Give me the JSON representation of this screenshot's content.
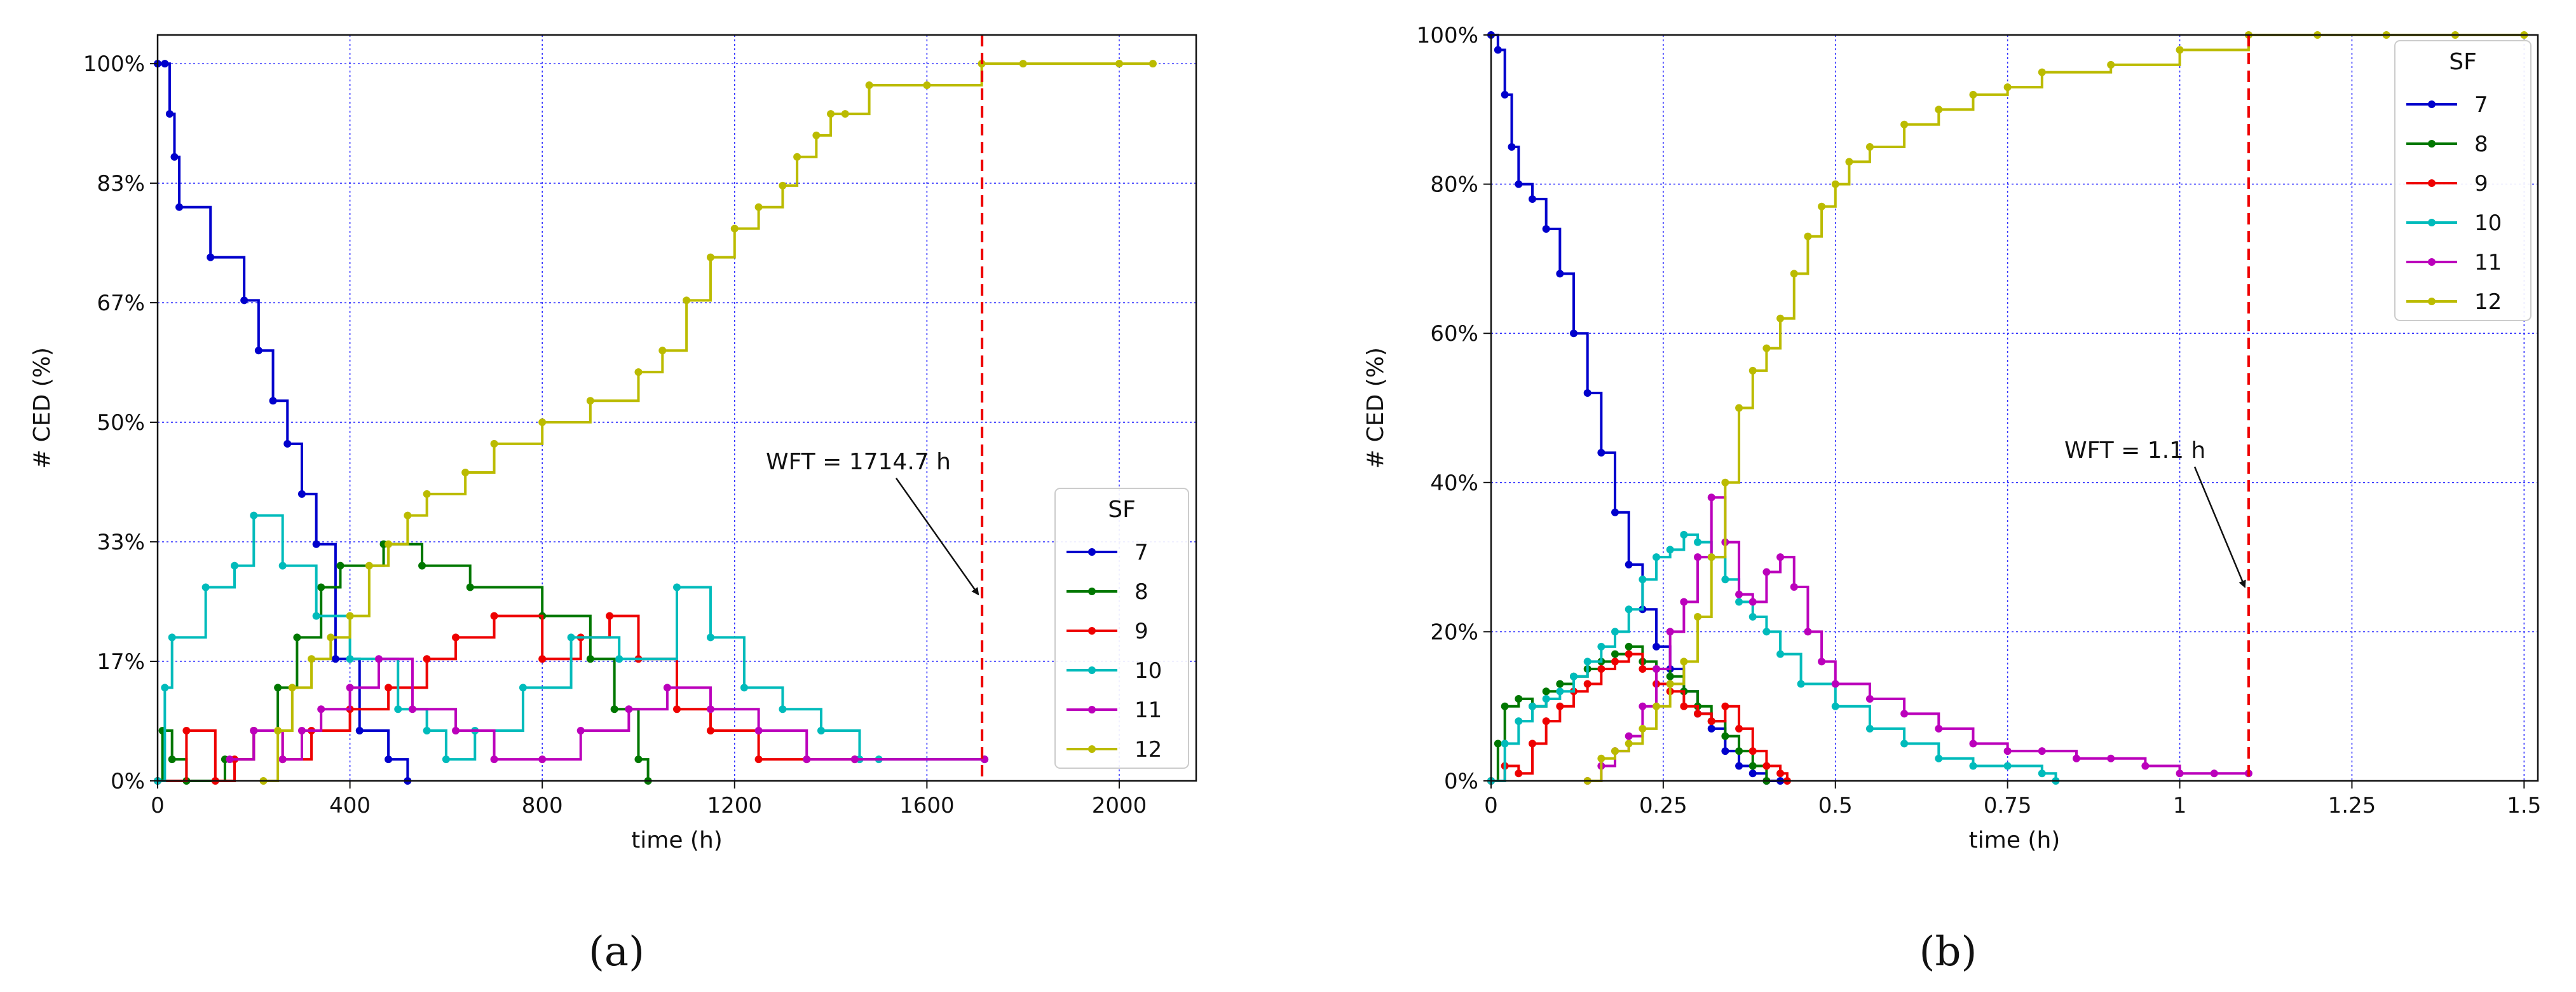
{
  "chart_data": [
    {
      "type": "line",
      "caption": "(a)",
      "xlabel": "time (h)",
      "ylabel": "# CED (%)",
      "xlim": [
        0,
        2160
      ],
      "ylim": [
        0,
        1.04
      ],
      "xticks": [
        0,
        400,
        800,
        1200,
        1600,
        2000
      ],
      "xtick_labels": [
        "0",
        "400",
        "800",
        "1200",
        "1600",
        "2000"
      ],
      "yticks": [
        0,
        0.1667,
        0.3333,
        0.5,
        0.6667,
        0.8333,
        1.0
      ],
      "ytick_labels": [
        "0%",
        "17%",
        "33%",
        "50%",
        "67%",
        "83%",
        "100%"
      ],
      "grid": true,
      "legend_title": "SF",
      "legend_position": "lower-right",
      "annotation": {
        "text": "WFT = 1714.7 h",
        "x": 1714.7,
        "arrow_y": 0.26
      },
      "wft_x": 1714.7,
      "series": [
        {
          "name": "7",
          "color": "#0000cc",
          "x": [
            0,
            15,
            25,
            35,
            45,
            110,
            180,
            210,
            240,
            270,
            300,
            330,
            370,
            420,
            480,
            520
          ],
          "y": [
            1.0,
            1.0,
            0.93,
            0.87,
            0.8,
            0.73,
            0.67,
            0.6,
            0.53,
            0.47,
            0.4,
            0.33,
            0.17,
            0.07,
            0.03,
            0.0
          ]
        },
        {
          "name": "8",
          "color": "#007700",
          "x": [
            0,
            10,
            30,
            60,
            140,
            200,
            250,
            290,
            340,
            380,
            470,
            550,
            650,
            800,
            900,
            950,
            1000,
            1020
          ],
          "y": [
            0.0,
            0.07,
            0.03,
            0.0,
            0.03,
            0.07,
            0.13,
            0.2,
            0.27,
            0.3,
            0.33,
            0.3,
            0.27,
            0.23,
            0.17,
            0.1,
            0.03,
            0.0
          ]
        },
        {
          "name": "9",
          "color": "#ee0000",
          "x": [
            0,
            60,
            120,
            160,
            200,
            260,
            320,
            400,
            480,
            560,
            620,
            700,
            800,
            880,
            940,
            1000,
            1080,
            1150,
            1250,
            1350,
            1450
          ],
          "y": [
            0.0,
            0.07,
            0.0,
            0.03,
            0.07,
            0.03,
            0.07,
            0.1,
            0.13,
            0.17,
            0.2,
            0.23,
            0.17,
            0.2,
            0.23,
            0.17,
            0.1,
            0.07,
            0.03,
            0.03,
            0.03
          ]
        },
        {
          "name": "10",
          "color": "#00bbbb",
          "x": [
            0,
            15,
            30,
            100,
            160,
            200,
            260,
            330,
            400,
            500,
            560,
            600,
            660,
            760,
            860,
            960,
            1080,
            1150,
            1220,
            1300,
            1380,
            1460,
            1500,
            1720
          ],
          "y": [
            0.0,
            0.13,
            0.2,
            0.27,
            0.3,
            0.37,
            0.3,
            0.23,
            0.17,
            0.1,
            0.07,
            0.03,
            0.07,
            0.13,
            0.2,
            0.17,
            0.27,
            0.2,
            0.13,
            0.1,
            0.07,
            0.03,
            0.03,
            0.03
          ]
        },
        {
          "name": "11",
          "color": "#bb00bb",
          "x": [
            150,
            200,
            260,
            300,
            340,
            400,
            460,
            530,
            620,
            700,
            800,
            880,
            980,
            1060,
            1150,
            1250,
            1350,
            1450,
            1720
          ],
          "y": [
            0.03,
            0.07,
            0.03,
            0.07,
            0.1,
            0.13,
            0.17,
            0.1,
            0.07,
            0.03,
            0.03,
            0.07,
            0.1,
            0.13,
            0.1,
            0.07,
            0.03,
            0.03,
            0.03
          ]
        },
        {
          "name": "12",
          "color": "#bbbb00",
          "x": [
            220,
            250,
            280,
            320,
            360,
            400,
            440,
            480,
            520,
            560,
            640,
            700,
            800,
            900,
            1000,
            1050,
            1100,
            1150,
            1200,
            1250,
            1300,
            1330,
            1370,
            1400,
            1430,
            1480,
            1600,
            1714,
            1800,
            2000,
            2070
          ],
          "y": [
            0.0,
            0.07,
            0.13,
            0.17,
            0.2,
            0.23,
            0.3,
            0.33,
            0.37,
            0.4,
            0.43,
            0.47,
            0.5,
            0.53,
            0.57,
            0.6,
            0.67,
            0.73,
            0.77,
            0.8,
            0.83,
            0.87,
            0.9,
            0.93,
            0.93,
            0.97,
            0.97,
            1.0,
            1.0,
            1.0,
            1.0
          ]
        }
      ]
    },
    {
      "type": "line",
      "caption": "(b)",
      "xlabel": "time (h)",
      "ylabel": "# CED (%)",
      "xlim": [
        0,
        1.52
      ],
      "ylim": [
        0,
        1.0
      ],
      "xticks": [
        0,
        0.25,
        0.5,
        0.75,
        1.0,
        1.25,
        1.5
      ],
      "xtick_labels": [
        "0",
        "0.25",
        "0.5",
        "0.75",
        "1",
        "1.25",
        "1.5"
      ],
      "yticks": [
        0,
        0.2,
        0.4,
        0.6,
        0.8,
        1.0
      ],
      "ytick_labels": [
        "0%",
        "20%",
        "40%",
        "60%",
        "80%",
        "100%"
      ],
      "grid": true,
      "legend_title": "SF",
      "legend_position": "upper-right",
      "annotation": {
        "text": "WFT = 1.1 h",
        "x": 1.1,
        "arrow_y": 0.26
      },
      "wft_x": 1.1,
      "series": [
        {
          "name": "7",
          "color": "#0000cc",
          "x": [
            0.0,
            0.01,
            0.02,
            0.03,
            0.04,
            0.06,
            0.08,
            0.1,
            0.12,
            0.14,
            0.16,
            0.18,
            0.2,
            0.22,
            0.24,
            0.26,
            0.28,
            0.3,
            0.32,
            0.34,
            0.36,
            0.38,
            0.4,
            0.42
          ],
          "y": [
            1.0,
            0.98,
            0.92,
            0.85,
            0.8,
            0.78,
            0.74,
            0.68,
            0.6,
            0.52,
            0.44,
            0.36,
            0.29,
            0.23,
            0.18,
            0.15,
            0.12,
            0.09,
            0.07,
            0.04,
            0.02,
            0.01,
            0.0,
            0.0
          ]
        },
        {
          "name": "8",
          "color": "#007700",
          "x": [
            0.0,
            0.01,
            0.02,
            0.04,
            0.06,
            0.08,
            0.1,
            0.12,
            0.14,
            0.16,
            0.18,
            0.2,
            0.22,
            0.24,
            0.26,
            0.28,
            0.3,
            0.32,
            0.34,
            0.36,
            0.38,
            0.4
          ],
          "y": [
            0.0,
            0.05,
            0.1,
            0.11,
            0.1,
            0.12,
            0.13,
            0.14,
            0.15,
            0.16,
            0.17,
            0.18,
            0.16,
            0.15,
            0.14,
            0.12,
            0.1,
            0.08,
            0.06,
            0.04,
            0.02,
            0.0
          ]
        },
        {
          "name": "9",
          "color": "#ee0000",
          "x": [
            0.0,
            0.02,
            0.04,
            0.06,
            0.08,
            0.1,
            0.12,
            0.14,
            0.16,
            0.18,
            0.2,
            0.22,
            0.24,
            0.26,
            0.28,
            0.3,
            0.32,
            0.34,
            0.36,
            0.38,
            0.4,
            0.42,
            0.43
          ],
          "y": [
            0.0,
            0.02,
            0.01,
            0.05,
            0.08,
            0.1,
            0.12,
            0.13,
            0.15,
            0.16,
            0.17,
            0.15,
            0.13,
            0.12,
            0.1,
            0.09,
            0.08,
            0.1,
            0.07,
            0.04,
            0.02,
            0.01,
            0.0
          ]
        },
        {
          "name": "10",
          "color": "#00bbbb",
          "x": [
            0.0,
            0.02,
            0.04,
            0.06,
            0.08,
            0.1,
            0.12,
            0.14,
            0.16,
            0.18,
            0.2,
            0.22,
            0.24,
            0.26,
            0.28,
            0.3,
            0.32,
            0.34,
            0.36,
            0.38,
            0.4,
            0.42,
            0.45,
            0.5,
            0.55,
            0.6,
            0.65,
            0.7,
            0.75,
            0.8,
            0.82
          ],
          "y": [
            0.0,
            0.05,
            0.08,
            0.1,
            0.11,
            0.12,
            0.14,
            0.16,
            0.18,
            0.2,
            0.23,
            0.27,
            0.3,
            0.31,
            0.33,
            0.32,
            0.3,
            0.27,
            0.24,
            0.22,
            0.2,
            0.17,
            0.13,
            0.1,
            0.07,
            0.05,
            0.03,
            0.02,
            0.02,
            0.01,
            0.0
          ]
        },
        {
          "name": "11",
          "color": "#bb00bb",
          "x": [
            0.14,
            0.16,
            0.18,
            0.2,
            0.22,
            0.24,
            0.26,
            0.28,
            0.3,
            0.32,
            0.34,
            0.36,
            0.38,
            0.4,
            0.42,
            0.44,
            0.46,
            0.48,
            0.5,
            0.55,
            0.6,
            0.65,
            0.7,
            0.75,
            0.8,
            0.85,
            0.9,
            0.95,
            1.0,
            1.05,
            1.1
          ],
          "y": [
            0.0,
            0.02,
            0.04,
            0.06,
            0.1,
            0.15,
            0.2,
            0.24,
            0.3,
            0.38,
            0.32,
            0.25,
            0.24,
            0.28,
            0.3,
            0.26,
            0.2,
            0.16,
            0.13,
            0.11,
            0.09,
            0.07,
            0.05,
            0.04,
            0.04,
            0.03,
            0.03,
            0.02,
            0.01,
            0.01,
            0.01
          ]
        },
        {
          "name": "12",
          "color": "#bbbb00",
          "x": [
            0.14,
            0.16,
            0.18,
            0.2,
            0.22,
            0.24,
            0.26,
            0.28,
            0.3,
            0.32,
            0.34,
            0.36,
            0.38,
            0.4,
            0.42,
            0.44,
            0.46,
            0.48,
            0.5,
            0.52,
            0.55,
            0.6,
            0.65,
            0.7,
            0.75,
            0.8,
            0.9,
            1.0,
            1.1,
            1.2,
            1.3,
            1.4,
            1.5
          ],
          "y": [
            0.0,
            0.03,
            0.04,
            0.05,
            0.07,
            0.1,
            0.13,
            0.16,
            0.22,
            0.3,
            0.4,
            0.5,
            0.55,
            0.58,
            0.62,
            0.68,
            0.73,
            0.77,
            0.8,
            0.83,
            0.85,
            0.88,
            0.9,
            0.92,
            0.93,
            0.95,
            0.96,
            0.98,
            1.0,
            1.0,
            1.0,
            1.0,
            1.0
          ]
        }
      ]
    }
  ]
}
